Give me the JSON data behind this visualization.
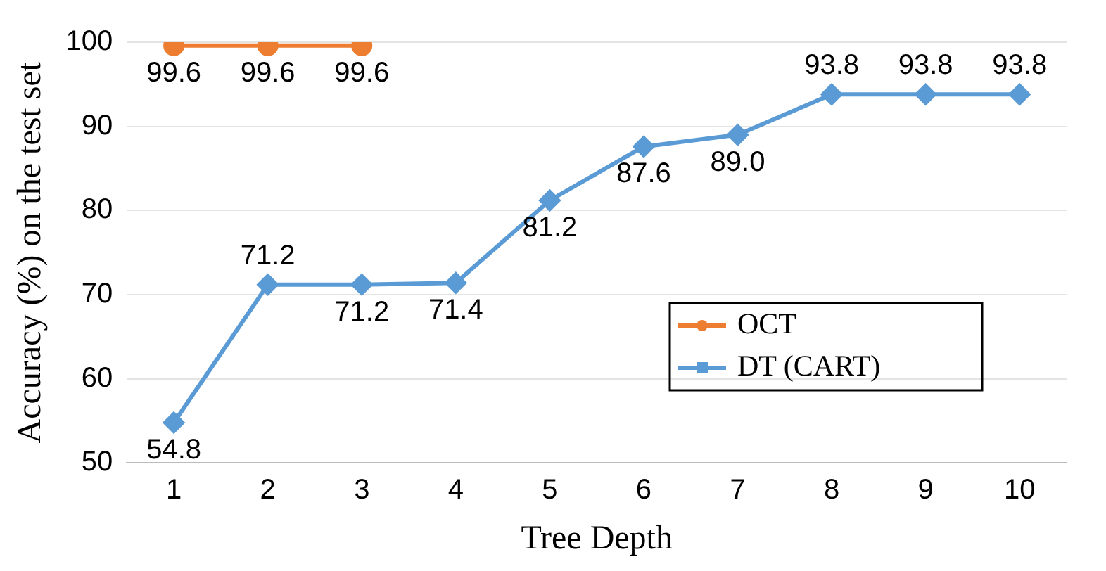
{
  "chart_data": {
    "type": "line",
    "xlabel": "Tree Depth",
    "ylabel": "Accuracy (%) on the test set",
    "categories": [
      "1",
      "2",
      "3",
      "4",
      "5",
      "6",
      "7",
      "8",
      "9",
      "10"
    ],
    "series": [
      {
        "name": "OCT",
        "color": "#ed7d31",
        "marker": "circle",
        "values": [
          99.6,
          99.6,
          99.6,
          null,
          null,
          null,
          null,
          null,
          null,
          null
        ],
        "value_labels": [
          "99.6",
          "99.6",
          "99.6",
          null,
          null,
          null,
          null,
          null,
          null,
          null
        ]
      },
      {
        "name": "DT (CART)",
        "color": "#5b9bd5",
        "marker": "diamond",
        "values": [
          54.8,
          71.2,
          71.2,
          71.4,
          81.2,
          87.6,
          89.0,
          93.8,
          93.8,
          93.8
        ],
        "value_labels": [
          "54.8",
          "71.2",
          "71.2",
          "71.4",
          "81.2",
          "87.6",
          "89.0",
          "93.8",
          "93.8",
          "93.8"
        ]
      }
    ],
    "ylim": [
      50,
      100
    ],
    "yticks": [
      50,
      60,
      70,
      80,
      90,
      100
    ],
    "grid": "y",
    "legend": "right",
    "line_style": "solid"
  }
}
